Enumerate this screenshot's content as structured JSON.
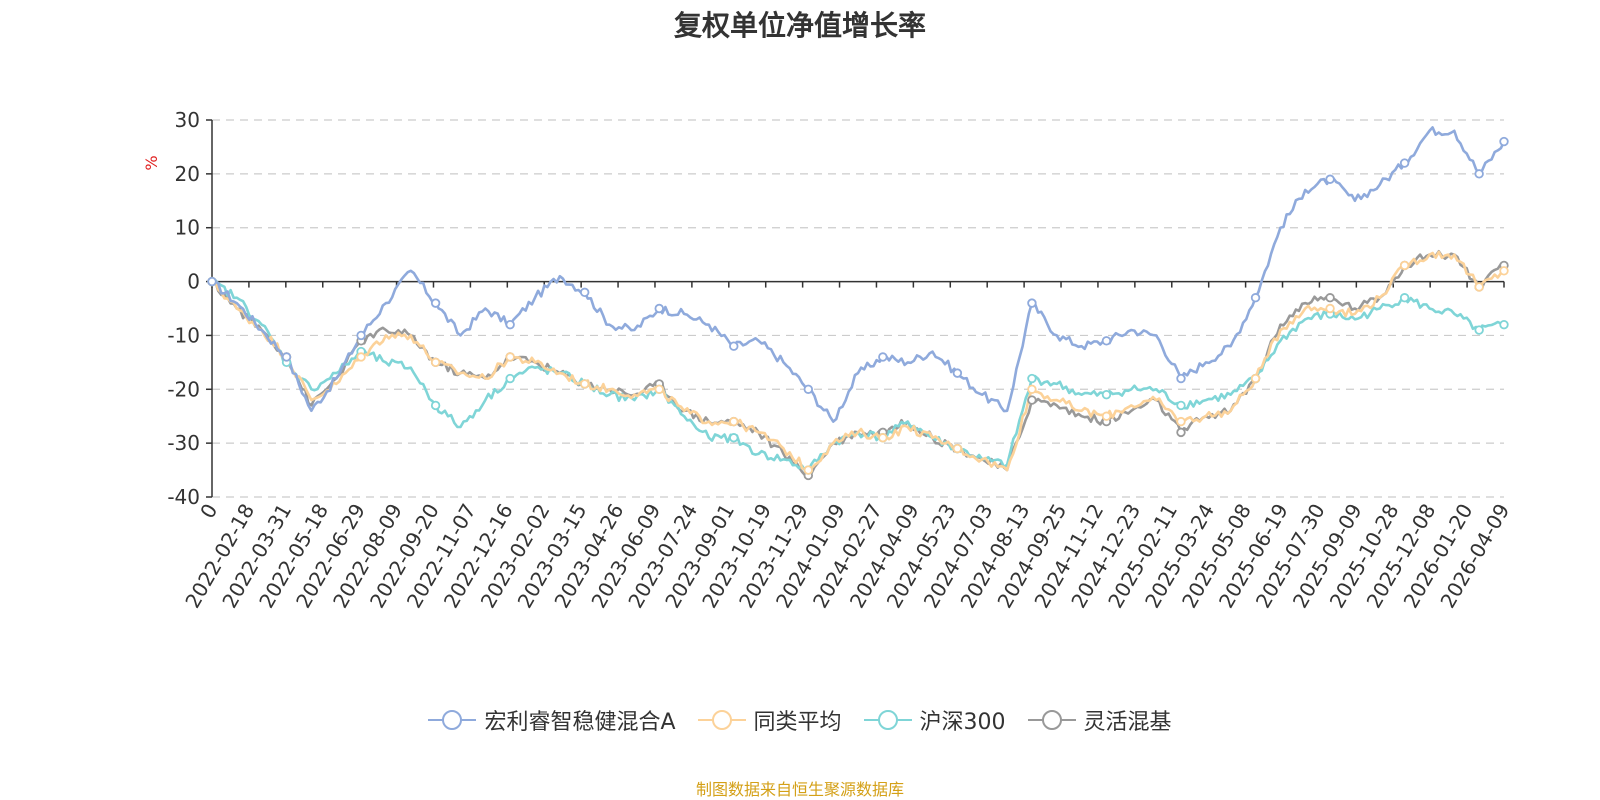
{
  "chart_data": {
    "type": "line",
    "title": "复权单位净值增长率",
    "ylabel": "%",
    "ylim": [
      -40,
      30
    ],
    "yticks": [
      30,
      20,
      10,
      0,
      -10,
      -20,
      -30,
      -40
    ],
    "x_tick_labels": [
      "0",
      "2022-02-18",
      "2022-03-31",
      "2022-05-18",
      "2022-06-29",
      "2022-08-09",
      "2022-09-20",
      "2022-11-07",
      "2022-12-16",
      "2023-02-02",
      "2023-03-15",
      "2023-04-26",
      "2023-06-09",
      "2023-07-24",
      "2023-09-01",
      "2023-10-19",
      "2023-11-29",
      "2024-01-09",
      "2024-02-27",
      "2024-04-09",
      "2024-05-23",
      "2024-07-03",
      "2024-08-13",
      "2024-09-25",
      "2024-11-12",
      "2024-12-23",
      "2025-02-11",
      "2025-03-24",
      "2025-05-08",
      "2025-06-19",
      "2025-07-30",
      "2025-09-09",
      "2025-10-28",
      "2025-12-08",
      "2026-01-20",
      "2026-04-09"
    ],
    "grid": true,
    "legend_position": "bottom",
    "series": [
      {
        "name": "宏利睿智稳健混合A",
        "color": "#8faadc",
        "values": [
          0,
          -4,
          -9,
          -14,
          -24,
          -18,
          -10,
          -4,
          2,
          -4,
          -10,
          -5,
          -8,
          -3,
          1,
          -2,
          -8,
          -9,
          -5,
          -6,
          -8,
          -12,
          -11,
          -15,
          -20,
          -26,
          -17,
          -14,
          -15,
          -13,
          -17,
          -21,
          -24,
          -4,
          -10,
          -12,
          -11,
          -9,
          -10,
          -18,
          -15,
          -12,
          -3,
          10,
          17,
          19,
          15,
          18,
          22,
          28,
          28,
          20,
          26
        ]
      },
      {
        "name": "同类平均",
        "color": "#fcd299",
        "values": [
          0,
          -5,
          -9,
          -14,
          -22,
          -19,
          -14,
          -10,
          -10,
          -15,
          -17,
          -18,
          -14,
          -15,
          -17,
          -19,
          -20,
          -21,
          -20,
          -24,
          -26,
          -26,
          -28,
          -31,
          -35,
          -30,
          -28,
          -29,
          -27,
          -29,
          -31,
          -33,
          -35,
          -20,
          -22,
          -24,
          -25,
          -23,
          -22,
          -26,
          -25,
          -24,
          -18,
          -9,
          -5,
          -5,
          -6,
          -3,
          3,
          5,
          5,
          -1,
          2
        ]
      },
      {
        "name": "沪深300",
        "color": "#7fd5d7",
        "values": [
          0,
          -3,
          -8,
          -15,
          -20,
          -17,
          -13,
          -15,
          -16,
          -23,
          -27,
          -22,
          -18,
          -16,
          -17,
          -19,
          -21,
          -22,
          -20,
          -25,
          -29,
          -29,
          -32,
          -33,
          -35,
          -30,
          -28,
          -29,
          -26,
          -29,
          -31,
          -33,
          -34,
          -18,
          -19,
          -21,
          -21,
          -20,
          -20,
          -23,
          -22,
          -21,
          -18,
          -11,
          -7,
          -6,
          -7,
          -5,
          -3,
          -5,
          -6,
          -9,
          -8
        ]
      },
      {
        "name": "灵活混基",
        "color": "#999999",
        "values": [
          0,
          -5,
          -9,
          -14,
          -23,
          -18,
          -11,
          -9,
          -10,
          -15,
          -17,
          -18,
          -14,
          -15,
          -17,
          -19,
          -20,
          -21,
          -19,
          -24,
          -26,
          -26,
          -28,
          -32,
          -36,
          -30,
          -28,
          -28,
          -26,
          -29,
          -31,
          -33,
          -35,
          -22,
          -23,
          -25,
          -26,
          -24,
          -22,
          -28,
          -25,
          -24,
          -18,
          -8,
          -4,
          -3,
          -5,
          -3,
          3,
          5,
          5,
          -1,
          3
        ]
      }
    ]
  },
  "footer": {
    "source": "制图数据来自恒生聚源数据库"
  }
}
